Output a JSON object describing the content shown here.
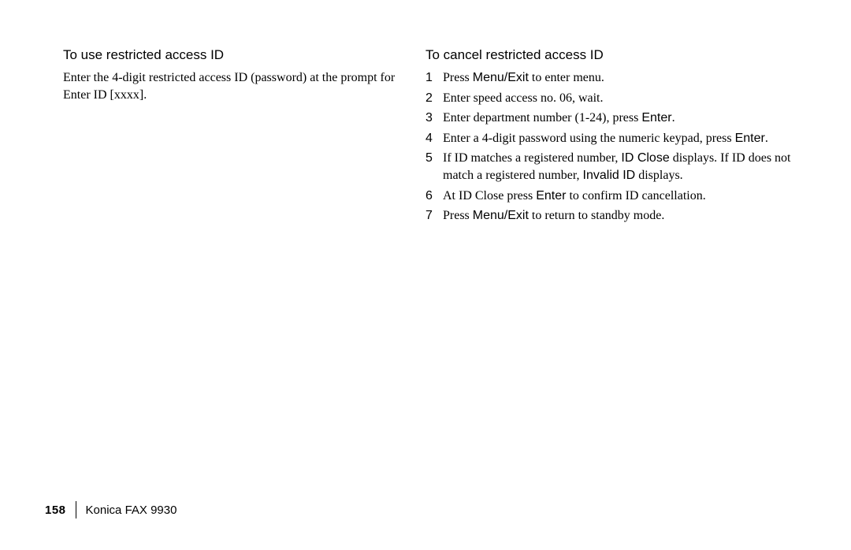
{
  "left": {
    "heading": "To use restricted access ID",
    "paragraph": "Enter the 4-digit restricted access ID (password) at the prompt for Enter ID [xxxx]."
  },
  "right": {
    "heading": "To cancel restricted access ID",
    "steps": [
      {
        "num": "1",
        "pre": "Press ",
        "key1": "Menu/Exit",
        "post": " to enter menu."
      },
      {
        "num": "2",
        "text": "Enter speed access no. 06, wait."
      },
      {
        "num": "3",
        "pre": "Enter department number (1-24), press ",
        "key1": "Enter",
        "post": "."
      },
      {
        "num": "4",
        "pre": "Enter a 4-digit password using the numeric keypad, press ",
        "key1": "Enter",
        "post": "."
      },
      {
        "num": "5",
        "pre": "If ID matches a registered number, ",
        "key1": "ID Close",
        "mid": " displays.  If ID does not match a registered number, ",
        "key2": "Invalid ID",
        "post": " displays."
      },
      {
        "num": "6",
        "pre": "At ID Close press ",
        "key1": "Enter",
        "post": " to confirm ID cancellation."
      },
      {
        "num": "7",
        "pre": "Press ",
        "key1": "Menu/Exit",
        "post": " to return to standby mode."
      }
    ]
  },
  "footer": {
    "page": "158",
    "product": "Konica FAX 9930"
  }
}
